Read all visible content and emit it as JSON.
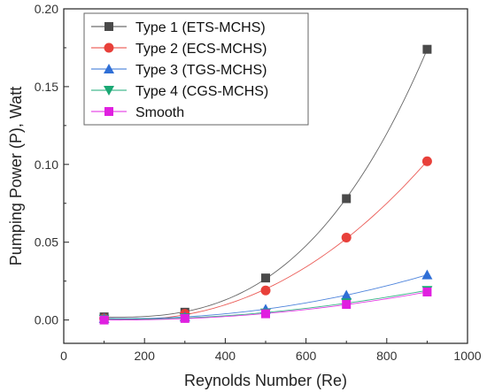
{
  "chart_data": {
    "type": "scatter",
    "xlabel": "Reynolds Number (Re)",
    "ylabel": "Pumping Power (P), Watt",
    "xlim": [
      0,
      1000
    ],
    "ylim": [
      -0.015,
      0.2
    ],
    "xticks": [
      0,
      200,
      400,
      600,
      800,
      1000
    ],
    "yticks": [
      0.0,
      0.05,
      0.1,
      0.15,
      0.2
    ],
    "xtick_labels": [
      "0",
      "200",
      "400",
      "600",
      "800",
      "1000"
    ],
    "ytick_labels": [
      "0.00",
      "0.05",
      "0.10",
      "0.15",
      "0.20"
    ],
    "legend_position": "top-left",
    "grid": false,
    "x": [
      100,
      300,
      500,
      700,
      900
    ],
    "series": [
      {
        "name": "Type 1 (ETS-MCHS)",
        "marker": "square",
        "color": "#4a4a4a",
        "values": [
          0.002,
          0.005,
          0.027,
          0.078,
          0.174
        ]
      },
      {
        "name": "Type 2 (ECS-MCHS)",
        "marker": "circle",
        "color": "#e8403a",
        "values": [
          0.001,
          0.004,
          0.019,
          0.053,
          0.102
        ]
      },
      {
        "name": "Type 3 (TGS-MCHS)",
        "marker": "triangle-up",
        "color": "#2f6fd6",
        "values": [
          0.001,
          0.002,
          0.007,
          0.016,
          0.029
        ]
      },
      {
        "name": "Type 4 (CGS-MCHS)",
        "marker": "triangle-down",
        "color": "#1aa874",
        "values": [
          0.0005,
          0.0015,
          0.0045,
          0.011,
          0.019
        ]
      },
      {
        "name": "Smooth",
        "marker": "square",
        "color": "#e020e0",
        "values": [
          0.0,
          0.001,
          0.004,
          0.01,
          0.018
        ]
      }
    ]
  }
}
